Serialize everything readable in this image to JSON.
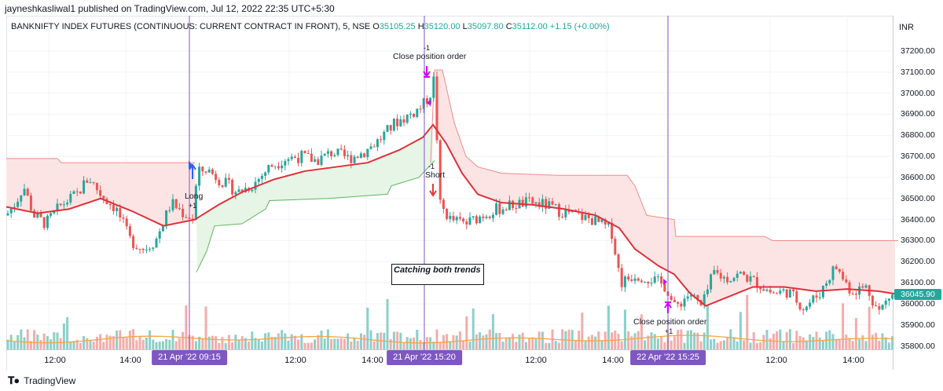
{
  "header": {
    "publisher_line": "jayneshkasliwal1 published on TradingView.com, Jul 12, 2022 22:35 UTC+5:30",
    "series_title": "BANKNIFTY INDEX FUTURES (CONTINUOUS: CURRENT CONTRACT IN FRONT), 5, NSE",
    "ohlc": {
      "o_label": "O",
      "o": "35105.25",
      "h_label": "H",
      "h": "35120.00",
      "l_label": "L",
      "l": "35097.80",
      "c_label": "C",
      "c": "35112.00",
      "change": "+1.15 (+0.00%)"
    }
  },
  "currency": "INR",
  "last_price_flag": "36045.90",
  "footer": {
    "brand": "TradingView",
    "logo": "tradingview-logo-icon"
  },
  "annotations": {
    "long_label": "Long",
    "long_qty": "+1",
    "short_label": "Short",
    "short_qty": "-1",
    "close1_label": "Close position order",
    "close1_qty": "-1",
    "close2_label": "Close position order",
    "close2_qty": "+1",
    "note": "Catching both trends"
  },
  "colors": {
    "up": "#26a69a",
    "down": "#ef5350",
    "ma": "#e0303a",
    "upper_band": "#f28b8b",
    "lower_band": "#5cb85c",
    "fill_red": "#fde4e4",
    "fill_green": "#e6f5e6",
    "volume_ma": "#f5a742",
    "marker_line": "#7e57c2",
    "long_arrow": "#2962ff",
    "short_arrow": "#e53935",
    "close_marker": "#d500f9"
  },
  "chart_data": {
    "type": "candlestick",
    "symbol": "BANKNIFTY INDEX FUTURES (CONTINUOUS: CURRENT CONTRACT IN FRONT)",
    "interval": "5",
    "exchange": "NSE",
    "y_axis": {
      "ticks": [
        35800,
        35900,
        36000,
        36100,
        36200,
        36300,
        36400,
        36500,
        36600,
        36700,
        36800,
        36900,
        37000,
        37100,
        37200
      ],
      "tick_labels": [
        "35800.00",
        "35900.00",
        "36000.00",
        "36100.00",
        "36200.00",
        "36300.00",
        "36400.00",
        "36500.00",
        "36600.00",
        "36700.00",
        "36800.00",
        "36900.00",
        "37000.00",
        "37100.00",
        "37200.00"
      ],
      "range": [
        35770,
        37290
      ]
    },
    "x_axis": {
      "labels": [
        "12:00",
        "14:00",
        "21 Apr '22  09:15",
        "12:00",
        "14:00",
        "21 Apr '22  15:20",
        "12:00",
        "14:00",
        "22 Apr '22  15:25",
        "12:00",
        "14:00"
      ],
      "highlighted": [
        "21 Apr '22  09:15",
        "21 Apr '22  15:20",
        "22 Apr '22  15:25"
      ]
    },
    "price_path": [
      [
        0,
        36420
      ],
      [
        12,
        36480
      ],
      [
        22,
        36560
      ],
      [
        35,
        36420
      ],
      [
        50,
        36380
      ],
      [
        70,
        36470
      ],
      [
        90,
        36520
      ],
      [
        105,
        36600
      ],
      [
        120,
        36520
      ],
      [
        140,
        36450
      ],
      [
        158,
        36300
      ],
      [
        175,
        36260
      ],
      [
        190,
        36300
      ],
      [
        210,
        36480
      ],
      [
        225,
        36430
      ],
      [
        240,
        36400
      ],
      [
        242,
        36620
      ],
      [
        255,
        36640
      ],
      [
        275,
        36580
      ],
      [
        295,
        36530
      ],
      [
        315,
        36570
      ],
      [
        335,
        36650
      ],
      [
        355,
        36690
      ],
      [
        375,
        36700
      ],
      [
        395,
        36680
      ],
      [
        415,
        36720
      ],
      [
        435,
        36690
      ],
      [
        455,
        36720
      ],
      [
        475,
        36780
      ],
      [
        495,
        36860
      ],
      [
        515,
        36900
      ],
      [
        530,
        36940
      ],
      [
        540,
        37000
      ],
      [
        546,
        37100
      ],
      [
        550,
        36480
      ],
      [
        565,
        36400
      ],
      [
        585,
        36380
      ],
      [
        605,
        36420
      ],
      [
        625,
        36450
      ],
      [
        645,
        36470
      ],
      [
        665,
        36480
      ],
      [
        685,
        36470
      ],
      [
        705,
        36440
      ],
      [
        725,
        36420
      ],
      [
        745,
        36400
      ],
      [
        770,
        36350
      ],
      [
        782,
        36100
      ],
      [
        800,
        36140
      ],
      [
        820,
        36120
      ],
      [
        840,
        36080
      ],
      [
        850,
        35980
      ],
      [
        870,
        36050
      ],
      [
        885,
        35980
      ],
      [
        900,
        36150
      ],
      [
        915,
        36120
      ],
      [
        935,
        36140
      ],
      [
        955,
        36100
      ],
      [
        975,
        36050
      ],
      [
        995,
        36060
      ],
      [
        1015,
        35980
      ],
      [
        1035,
        36050
      ],
      [
        1055,
        36180
      ],
      [
        1075,
        36060
      ],
      [
        1095,
        36080
      ],
      [
        1110,
        35960
      ],
      [
        1125,
        36040
      ],
      [
        1135,
        36045
      ]
    ],
    "moving_average": [
      [
        0,
        36460
      ],
      [
        40,
        36430
      ],
      [
        80,
        36450
      ],
      [
        120,
        36500
      ],
      [
        160,
        36440
      ],
      [
        200,
        36370
      ],
      [
        240,
        36400
      ],
      [
        270,
        36470
      ],
      [
        300,
        36530
      ],
      [
        340,
        36590
      ],
      [
        380,
        36630
      ],
      [
        420,
        36650
      ],
      [
        460,
        36670
      ],
      [
        500,
        36730
      ],
      [
        530,
        36790
      ],
      [
        543,
        36850
      ],
      [
        560,
        36760
      ],
      [
        580,
        36620
      ],
      [
        600,
        36520
      ],
      [
        630,
        36480
      ],
      [
        670,
        36470
      ],
      [
        710,
        36450
      ],
      [
        750,
        36420
      ],
      [
        780,
        36360
      ],
      [
        800,
        36260
      ],
      [
        830,
        36180
      ],
      [
        850,
        36140
      ],
      [
        870,
        36050
      ],
      [
        890,
        35990
      ],
      [
        910,
        36020
      ],
      [
        950,
        36080
      ],
      [
        990,
        36080
      ],
      [
        1030,
        36060
      ],
      [
        1070,
        36070
      ],
      [
        1110,
        36060
      ],
      [
        1135,
        36045
      ]
    ],
    "upper_band": [
      [
        0,
        36690
      ],
      [
        65,
        36690
      ],
      [
        70,
        36670
      ],
      [
        240,
        36670
      ],
      [
        540,
        36670
      ],
      [
        545,
        37110
      ],
      [
        555,
        37110
      ],
      [
        570,
        36860
      ],
      [
        585,
        36700
      ],
      [
        600,
        36650
      ],
      [
        630,
        36620
      ],
      [
        700,
        36610
      ],
      [
        790,
        36610
      ],
      [
        800,
        36560
      ],
      [
        815,
        36420
      ],
      [
        850,
        36400
      ],
      [
        852,
        36320
      ],
      [
        965,
        36320
      ],
      [
        975,
        36300
      ],
      [
        1135,
        36300
      ]
    ],
    "lower_band": [
      [
        242,
        36150
      ],
      [
        255,
        36250
      ],
      [
        265,
        36370
      ],
      [
        300,
        36380
      ],
      [
        330,
        36450
      ],
      [
        335,
        36490
      ],
      [
        410,
        36500
      ],
      [
        485,
        36520
      ],
      [
        490,
        36560
      ],
      [
        525,
        36600
      ],
      [
        535,
        36640
      ],
      [
        545,
        36680
      ]
    ],
    "events": [
      {
        "label": "Long",
        "qty": "+1",
        "time": "21 Apr '22 09:15"
      },
      {
        "label": "Close position order",
        "qty": "-1",
        "time": "21 Apr '22 15:20"
      },
      {
        "label": "Short",
        "qty": "-1",
        "time": "21 Apr '22 15:20"
      },
      {
        "label": "Close position order",
        "qty": "+1",
        "time": "22 Apr '22 15:25"
      }
    ],
    "last_price": 36045.9,
    "grid": true
  }
}
